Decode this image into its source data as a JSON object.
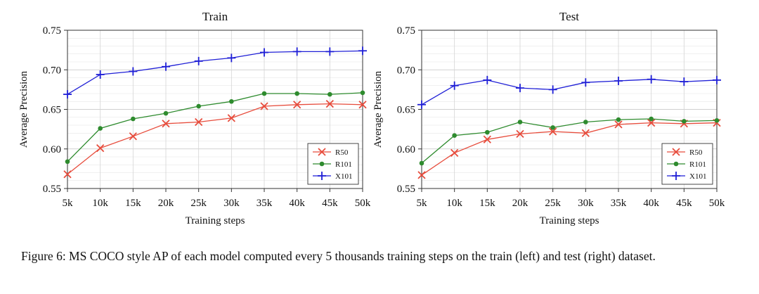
{
  "chart_data": [
    {
      "type": "line",
      "title": "Train",
      "xlabel": "Training steps",
      "ylabel": "Average Precision",
      "categories": [
        "5k",
        "10k",
        "15k",
        "20k",
        "25k",
        "30k",
        "35k",
        "40k",
        "45k",
        "50k"
      ],
      "ylim": [
        0.55,
        0.75
      ],
      "yticks": [
        "0.55",
        "0.60",
        "0.65",
        "0.70",
        "0.75"
      ],
      "grid": true,
      "legend": "bottom-right",
      "series": [
        {
          "name": "R50",
          "color": "#e74c3c",
          "marker": "x",
          "values": [
            0.568,
            0.601,
            0.616,
            0.632,
            0.634,
            0.639,
            0.654,
            0.656,
            0.657,
            0.656
          ]
        },
        {
          "name": "R101",
          "color": "#2e8b2e",
          "marker": "o",
          "values": [
            0.584,
            0.626,
            0.638,
            0.645,
            0.654,
            0.66,
            0.67,
            0.67,
            0.669,
            0.671
          ]
        },
        {
          "name": "X101",
          "color": "#1f1fd6",
          "marker": "+",
          "values": [
            0.669,
            0.694,
            0.698,
            0.704,
            0.711,
            0.715,
            0.722,
            0.723,
            0.723,
            0.724
          ]
        }
      ]
    },
    {
      "type": "line",
      "title": "Test",
      "xlabel": "Training steps",
      "ylabel": "Average Precision",
      "categories": [
        "5k",
        "10k",
        "15k",
        "20k",
        "25k",
        "30k",
        "35k",
        "40k",
        "45k",
        "50k"
      ],
      "ylim": [
        0.55,
        0.75
      ],
      "yticks": [
        "0.55",
        "0.60",
        "0.65",
        "0.70",
        "0.75"
      ],
      "grid": true,
      "legend": "bottom-right",
      "series": [
        {
          "name": "R50",
          "color": "#e74c3c",
          "marker": "x",
          "values": [
            0.567,
            0.595,
            0.612,
            0.619,
            0.622,
            0.62,
            0.631,
            0.633,
            0.632,
            0.633
          ]
        },
        {
          "name": "R101",
          "color": "#2e8b2e",
          "marker": "o",
          "values": [
            0.582,
            0.617,
            0.621,
            0.634,
            0.627,
            0.634,
            0.637,
            0.638,
            0.635,
            0.636
          ]
        },
        {
          "name": "X101",
          "color": "#1f1fd6",
          "marker": "+",
          "values": [
            0.656,
            0.68,
            0.687,
            0.677,
            0.675,
            0.684,
            0.686,
            0.688,
            0.685,
            0.687
          ]
        }
      ]
    }
  ],
  "caption": "Figure 6: MS COCO style AP of each model computed every 5 thousands training steps on the train (left) and test (right) dataset."
}
